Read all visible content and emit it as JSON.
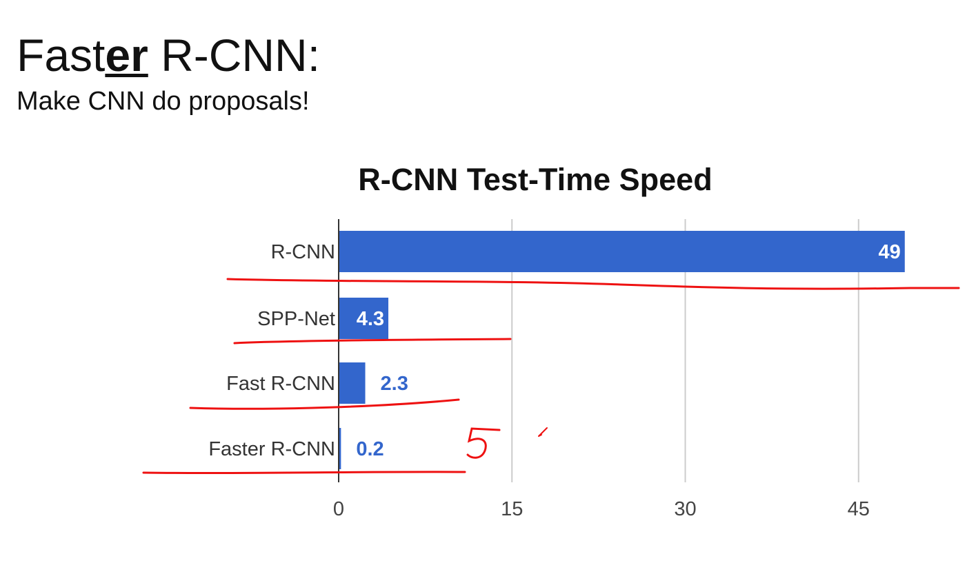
{
  "slide": {
    "title_prefix": "Fast",
    "title_emph": "er",
    "title_suffix": " R-CNN:",
    "subtitle": "Make CNN do proposals!"
  },
  "chart_data": {
    "type": "bar",
    "orientation": "horizontal",
    "title": "R-CNN Test-Time Speed",
    "categories": [
      "R-CNN",
      "SPP-Net",
      "Fast R-CNN",
      "Faster R-CNN"
    ],
    "values": [
      49,
      4.3,
      2.3,
      0.2
    ],
    "value_labels": [
      "49",
      "4.3",
      "2.3",
      "0.2"
    ],
    "xlim": [
      0,
      49
    ],
    "xticks": [
      0,
      15,
      30,
      45
    ],
    "xticklabels": [
      "0",
      "15",
      "30",
      "45"
    ],
    "grid": true,
    "legend": "none",
    "colors": {
      "bar": "#3366cc",
      "label_inside": "#ffffff",
      "label_outside": "#3366cc",
      "grid": "#cccccc",
      "axis": "#333333",
      "annotation": "#ee1111"
    },
    "annotations": {
      "handwritten_underlines": true,
      "handwritten_mark": "5"
    }
  }
}
